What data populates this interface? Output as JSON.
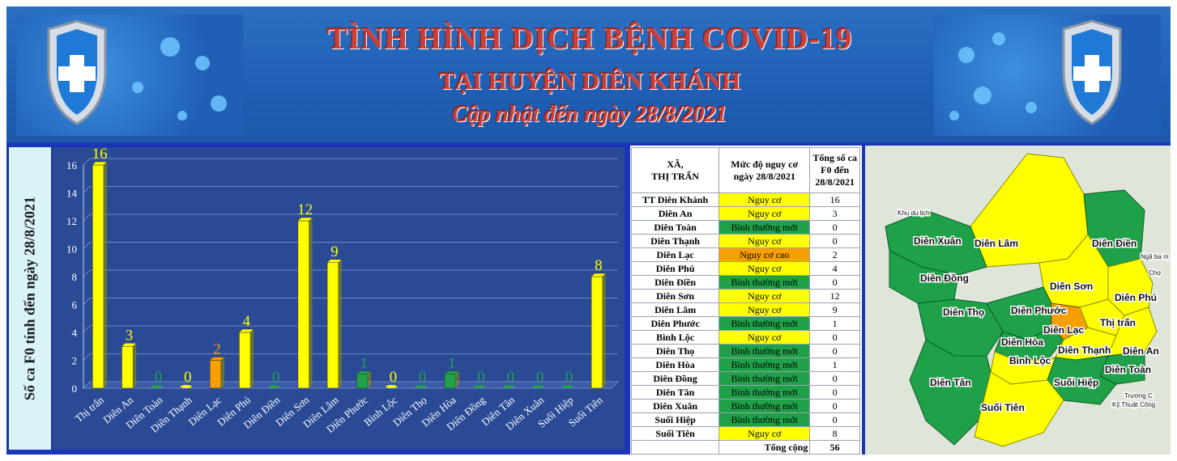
{
  "header": {
    "title": "TÌNH HÌNH DỊCH BỆNH COVID-19",
    "subtitle": "TẠI HUYỆN DIÊN KHÁNH",
    "updated": "Cập nhật đến ngày  28/8/2021"
  },
  "colors": {
    "normal": "#1fa14a",
    "risk": "#ffff00",
    "high_risk": "#f5a000",
    "frame": "#1a35b8",
    "plot_bg": "#2a4a96"
  },
  "chart_data": {
    "type": "bar",
    "ylabel": "Số ca F0 tính đến  ngày 28/8/2021",
    "ylim": [
      0,
      16
    ],
    "yticks": [
      0,
      2,
      4,
      6,
      8,
      10,
      12,
      14,
      16
    ],
    "categories": [
      "Thị trấn",
      "Diên An",
      "Diên Toàn",
      "Diên Thạnh",
      "Diên Lạc",
      "Diên Phú",
      "Diên Điền",
      "Diên Sơn",
      "Diên Lâm",
      "Diên Phước",
      "Bình Lộc",
      "Diên Thọ",
      "Diên Hòa",
      "Diên Đồng",
      "Diên Tân",
      "Diên Xuân",
      "Suối Hiệp",
      "Suối Tiên"
    ],
    "values": [
      16,
      3,
      0,
      0,
      2,
      4,
      0,
      12,
      9,
      1,
      0,
      0,
      1,
      0,
      0,
      0,
      0,
      8
    ],
    "bar_colors": [
      "#ffff00",
      "#ffff00",
      "#1fa14a",
      "#ffff00",
      "#f5a000",
      "#ffff00",
      "#1fa14a",
      "#ffff00",
      "#ffff00",
      "#1fa14a",
      "#ffff00",
      "#1fa14a",
      "#1fa14a",
      "#1fa14a",
      "#1fa14a",
      "#1fa14a",
      "#1fa14a",
      "#ffff00"
    ],
    "grid": true
  },
  "table": {
    "headers": [
      "XÃ,\nTHỊ TRẤN",
      "Mức độ nguy cơ ngày 28/8/2021",
      "Tổng số ca F0 đến 28/8/2021"
    ],
    "rows": [
      {
        "name": "TT Diên Khánh",
        "level": "Nguy cơ",
        "cases": "16",
        "color": "#ffff00"
      },
      {
        "name": "Diên An",
        "level": "Nguy cơ",
        "cases": "3",
        "color": "#ffff00"
      },
      {
        "name": "Diên Toàn",
        "level": "Bình thường mới",
        "cases": "0",
        "color": "#1fa14a"
      },
      {
        "name": "Diên Thạnh",
        "level": "Nguy cơ",
        "cases": "0",
        "color": "#ffff00"
      },
      {
        "name": "Diên Lạc",
        "level": "Nguy cơ cao",
        "cases": "2",
        "color": "#f5a000"
      },
      {
        "name": "Diên Phú",
        "level": "Nguy cơ",
        "cases": "4",
        "color": "#ffff00"
      },
      {
        "name": "Diên Điền",
        "level": "Bình thường mới",
        "cases": "0",
        "color": "#1fa14a"
      },
      {
        "name": "Diên Sơn",
        "level": "Nguy cơ",
        "cases": "12",
        "color": "#ffff00"
      },
      {
        "name": "Diên Lâm",
        "level": "Nguy cơ",
        "cases": "9",
        "color": "#ffff00"
      },
      {
        "name": "Diên Phước",
        "level": "Bình thường mới",
        "cases": "1",
        "color": "#1fa14a"
      },
      {
        "name": "Bình Lộc",
        "level": "Nguy cơ",
        "cases": "0",
        "color": "#ffff00"
      },
      {
        "name": "Diên Thọ",
        "level": "Bình thường mới",
        "cases": "0",
        "color": "#1fa14a"
      },
      {
        "name": "Diên Hòa",
        "level": "Bình thường mới",
        "cases": "1",
        "color": "#1fa14a"
      },
      {
        "name": "Diên Đồng",
        "level": "Bình thường mới",
        "cases": "0",
        "color": "#1fa14a"
      },
      {
        "name": "Diên Tân",
        "level": "Bình thường mới",
        "cases": "0",
        "color": "#1fa14a"
      },
      {
        "name": "Diên Xuân",
        "level": "Bình thường mới",
        "cases": "0",
        "color": "#1fa14a"
      },
      {
        "name": "Suối Hiệp",
        "level": "Bình thường mới",
        "cases": "0",
        "color": "#1fa14a"
      },
      {
        "name": "Suối Tiên",
        "level": "Nguy cơ",
        "cases": "8",
        "color": "#ffff00"
      }
    ],
    "total_label": "Tổng cộng",
    "total_value": "56"
  },
  "map": {
    "labels": [
      "Diên Xuân",
      "Diên Lâm",
      "Diên Điền",
      "Diên Đồng",
      "Diên Sơn",
      "Diên Thọ",
      "Diên Phước",
      "Diên Phú",
      "Diên Lạc",
      "Thị trấn",
      "Diên Hòa",
      "Diên Thạnh",
      "Diên An",
      "Bình Lộc",
      "Diên Toàn",
      "Diên Tân",
      "Suối Hiệp",
      "Suối Tiên"
    ],
    "small_labels": [
      "Khu du lịch",
      "Ngã ba m",
      "Chợ",
      "Trường C",
      "Kỹ Thuật Công"
    ]
  }
}
